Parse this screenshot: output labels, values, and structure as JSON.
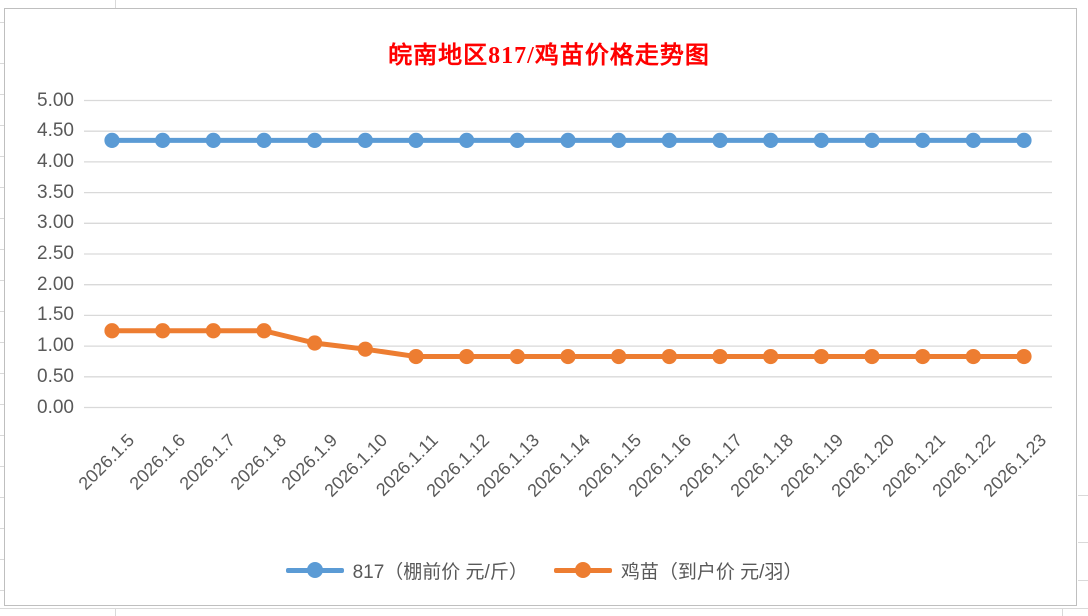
{
  "chart_data": {
    "type": "line",
    "title": "皖南地区817/鸡苗价格走势图",
    "title_color": "#ff0000",
    "xlabel": "",
    "ylabel": "",
    "ylim": [
      0,
      5
    ],
    "ytick_step": 0.5,
    "ytick_labels": [
      "0.00",
      "0.50",
      "1.00",
      "1.50",
      "2.00",
      "2.50",
      "3.00",
      "3.50",
      "4.00",
      "4.50",
      "5.00"
    ],
    "grid": "horizontal",
    "gridline_color": "#d9d9d9",
    "axis_text_color": "#595959",
    "legend_position": "bottom",
    "categories": [
      "2026.1.5",
      "2026.1.6",
      "2026.1.7",
      "2026.1.8",
      "2026.1.9",
      "2026.1.10",
      "2026.1.11",
      "2026.1.12",
      "2026.1.13",
      "2026.1.14",
      "2026.1.15",
      "2026.1.16",
      "2026.1.17",
      "2026.1.18",
      "2026.1.19",
      "2026.1.20",
      "2026.1.21",
      "2026.1.22",
      "2026.1.23"
    ],
    "series": [
      {
        "name": "817（棚前价 元/斤）",
        "color": "#5b9bd5",
        "values": [
          4.35,
          4.35,
          4.35,
          4.35,
          4.35,
          4.35,
          4.35,
          4.35,
          4.35,
          4.35,
          4.35,
          4.35,
          4.35,
          4.35,
          4.35,
          4.35,
          4.35,
          4.35,
          4.35
        ]
      },
      {
        "name": "鸡苗（到户价 元/羽）",
        "color": "#ed7d31",
        "values": [
          1.25,
          1.25,
          1.25,
          1.25,
          1.05,
          0.95,
          0.83,
          0.83,
          0.83,
          0.83,
          0.83,
          0.83,
          0.83,
          0.83,
          0.83,
          0.83,
          0.83,
          0.83,
          0.83
        ]
      }
    ]
  }
}
